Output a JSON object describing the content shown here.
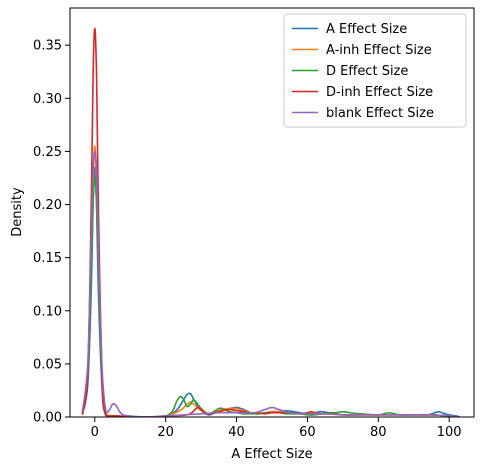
{
  "chart_data": {
    "type": "line",
    "title": "",
    "xlabel": "A Effect Size",
    "ylabel": "Density",
    "xlim": [
      -7,
      107
    ],
    "ylim": [
      0,
      0.385
    ],
    "xticks": [
      0,
      20,
      40,
      60,
      80,
      100
    ],
    "yticks": [
      0.0,
      0.05,
      0.1,
      0.15,
      0.2,
      0.25,
      0.3,
      0.35
    ],
    "xtick_labels": [
      "0",
      "20",
      "40",
      "60",
      "80",
      "100"
    ],
    "ytick_labels": [
      "0.00",
      "0.05",
      "0.10",
      "0.15",
      "0.20",
      "0.25",
      "0.30",
      "0.35"
    ],
    "grid": false,
    "legend_position": "top-right",
    "series": [
      {
        "name": "A Effect Size",
        "color": "#1f77b4",
        "x": [
          -3.5,
          -2,
          -1,
          -0.5,
          0,
          0.5,
          1,
          2,
          3,
          6,
          15,
          20,
          23,
          25,
          26,
          27,
          28,
          30,
          32,
          34,
          36,
          38,
          40,
          42,
          44,
          46,
          48,
          50,
          52,
          54,
          56,
          58,
          60,
          62,
          64,
          66,
          68,
          70,
          72,
          74,
          76,
          78,
          80,
          82,
          84,
          86,
          88,
          90,
          92,
          94,
          96,
          97,
          98,
          100,
          102,
          103
        ],
        "y": [
          0.003,
          0.03,
          0.12,
          0.2,
          0.235,
          0.2,
          0.12,
          0.03,
          0.003,
          0.001,
          0.0,
          0.001,
          0.006,
          0.016,
          0.021,
          0.022,
          0.016,
          0.006,
          0.002,
          0.004,
          0.006,
          0.008,
          0.009,
          0.007,
          0.004,
          0.003,
          0.004,
          0.005,
          0.005,
          0.006,
          0.005,
          0.004,
          0.003,
          0.004,
          0.005,
          0.004,
          0.003,
          0.002,
          0.002,
          0.002,
          0.002,
          0.002,
          0.002,
          0.002,
          0.002,
          0.002,
          0.002,
          0.002,
          0.002,
          0.002,
          0.004,
          0.005,
          0.004,
          0.002,
          0.001,
          0.0
        ]
      },
      {
        "name": "A-inh Effect Size",
        "color": "#ff7f0e",
        "x": [
          -3.5,
          -2,
          -1,
          -0.5,
          0,
          0.5,
          1,
          2,
          3,
          6,
          15,
          20,
          24,
          26,
          27,
          28,
          30,
          32,
          34,
          36,
          38,
          40,
          42,
          44,
          46,
          48,
          50,
          52,
          54,
          56,
          58,
          60,
          62,
          64,
          66,
          68,
          70,
          75,
          80,
          85,
          90,
          95,
          100,
          103
        ],
        "y": [
          0.003,
          0.04,
          0.15,
          0.22,
          0.255,
          0.22,
          0.15,
          0.04,
          0.004,
          0.001,
          0.0,
          0.001,
          0.006,
          0.012,
          0.014,
          0.012,
          0.006,
          0.003,
          0.005,
          0.007,
          0.008,
          0.008,
          0.006,
          0.004,
          0.003,
          0.004,
          0.005,
          0.005,
          0.004,
          0.003,
          0.003,
          0.003,
          0.004,
          0.003,
          0.003,
          0.003,
          0.002,
          0.002,
          0.002,
          0.002,
          0.002,
          0.002,
          0.001,
          0.0
        ]
      },
      {
        "name": "D Effect Size",
        "color": "#2ca02c",
        "x": [
          -3.5,
          -2,
          -1,
          -0.5,
          0,
          0.5,
          1,
          2,
          3,
          6,
          15,
          20,
          22,
          23,
          24,
          25,
          26,
          27,
          28,
          30,
          32,
          34,
          35,
          36,
          38,
          40,
          42,
          44,
          46,
          48,
          50,
          52,
          54,
          56,
          58,
          60,
          62,
          64,
          66,
          68,
          70,
          72,
          75,
          80,
          83,
          86,
          90,
          95,
          100,
          103
        ],
        "y": [
          0.003,
          0.04,
          0.14,
          0.2,
          0.225,
          0.2,
          0.14,
          0.04,
          0.003,
          0.001,
          0.0,
          0.001,
          0.006,
          0.014,
          0.019,
          0.017,
          0.01,
          0.012,
          0.016,
          0.008,
          0.003,
          0.006,
          0.008,
          0.008,
          0.005,
          0.004,
          0.003,
          0.003,
          0.003,
          0.004,
          0.004,
          0.004,
          0.003,
          0.003,
          0.003,
          0.002,
          0.002,
          0.003,
          0.004,
          0.004,
          0.005,
          0.004,
          0.003,
          0.002,
          0.004,
          0.002,
          0.002,
          0.002,
          0.001,
          0.0
        ]
      },
      {
        "name": "D-inh Effect Size",
        "color": "#d62728",
        "x": [
          -3.5,
          -2,
          -1,
          -0.5,
          0,
          0.5,
          1,
          2,
          3,
          6,
          15,
          20,
          26,
          28,
          29,
          30,
          32,
          34,
          36,
          38,
          40,
          42,
          44,
          46,
          48,
          50,
          52,
          54,
          56,
          58,
          60,
          61,
          62,
          64,
          66,
          70,
          75,
          80,
          85,
          90,
          95,
          100,
          103
        ],
        "y": [
          0.002,
          0.04,
          0.2,
          0.32,
          0.366,
          0.32,
          0.2,
          0.04,
          0.002,
          0.001,
          0.0,
          0.001,
          0.002,
          0.006,
          0.009,
          0.007,
          0.003,
          0.004,
          0.006,
          0.007,
          0.006,
          0.005,
          0.004,
          0.004,
          0.003,
          0.004,
          0.004,
          0.004,
          0.004,
          0.003,
          0.004,
          0.005,
          0.004,
          0.003,
          0.003,
          0.002,
          0.002,
          0.002,
          0.002,
          0.002,
          0.002,
          0.001,
          0.0
        ]
      },
      {
        "name": "blank Effect Size",
        "color": "#9467bd",
        "x": [
          -3.5,
          -2,
          -1,
          -0.5,
          0,
          0.5,
          1,
          2,
          3,
          4,
          5,
          6,
          7,
          8,
          10,
          15,
          20,
          25,
          30,
          35,
          40,
          45,
          48,
          50,
          52,
          55,
          60,
          65,
          70,
          75,
          80,
          85,
          90,
          95,
          100,
          103
        ],
        "y": [
          0.005,
          0.05,
          0.17,
          0.23,
          0.25,
          0.23,
          0.16,
          0.05,
          0.008,
          0.006,
          0.012,
          0.011,
          0.005,
          0.002,
          0.001,
          0.0,
          0.001,
          0.002,
          0.003,
          0.004,
          0.004,
          0.004,
          0.007,
          0.009,
          0.007,
          0.004,
          0.003,
          0.003,
          0.002,
          0.002,
          0.002,
          0.002,
          0.002,
          0.002,
          0.001,
          0.0
        ]
      }
    ]
  }
}
